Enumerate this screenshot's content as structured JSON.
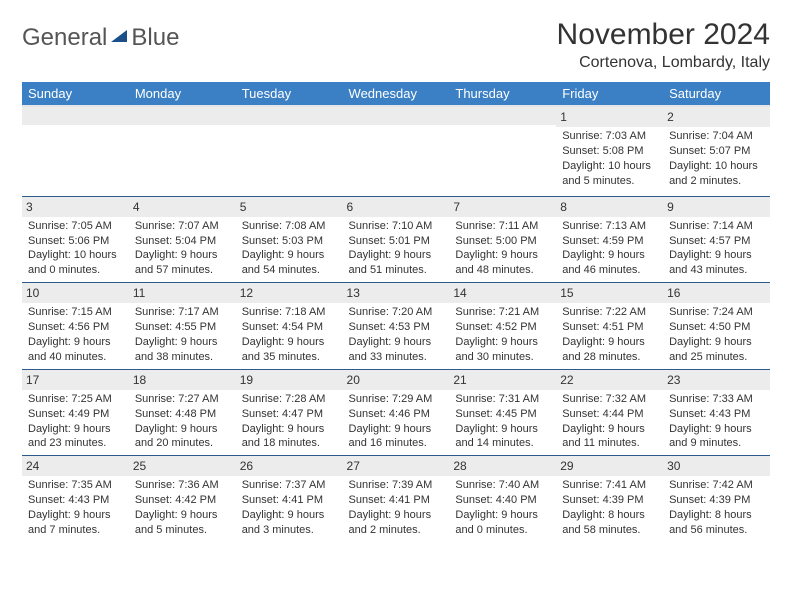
{
  "logo": {
    "text_a": "General",
    "text_b": "Blue"
  },
  "title": "November 2024",
  "location": "Cortenova, Lombardy, Italy",
  "day_headers": [
    "Sunday",
    "Monday",
    "Tuesday",
    "Wednesday",
    "Thursday",
    "Friday",
    "Saturday"
  ],
  "colors": {
    "header_bg": "#3b7fc4",
    "header_fg": "#ffffff",
    "daynum_bg": "#ececec",
    "row_border": "#2c5a8c",
    "text": "#333333"
  },
  "weeks": [
    [
      {
        "n": "",
        "sr": "",
        "ss": "",
        "dl": ""
      },
      {
        "n": "",
        "sr": "",
        "ss": "",
        "dl": ""
      },
      {
        "n": "",
        "sr": "",
        "ss": "",
        "dl": ""
      },
      {
        "n": "",
        "sr": "",
        "ss": "",
        "dl": ""
      },
      {
        "n": "",
        "sr": "",
        "ss": "",
        "dl": ""
      },
      {
        "n": "1",
        "sr": "Sunrise: 7:03 AM",
        "ss": "Sunset: 5:08 PM",
        "dl": "Daylight: 10 hours and 5 minutes."
      },
      {
        "n": "2",
        "sr": "Sunrise: 7:04 AM",
        "ss": "Sunset: 5:07 PM",
        "dl": "Daylight: 10 hours and 2 minutes."
      }
    ],
    [
      {
        "n": "3",
        "sr": "Sunrise: 7:05 AM",
        "ss": "Sunset: 5:06 PM",
        "dl": "Daylight: 10 hours and 0 minutes."
      },
      {
        "n": "4",
        "sr": "Sunrise: 7:07 AM",
        "ss": "Sunset: 5:04 PM",
        "dl": "Daylight: 9 hours and 57 minutes."
      },
      {
        "n": "5",
        "sr": "Sunrise: 7:08 AM",
        "ss": "Sunset: 5:03 PM",
        "dl": "Daylight: 9 hours and 54 minutes."
      },
      {
        "n": "6",
        "sr": "Sunrise: 7:10 AM",
        "ss": "Sunset: 5:01 PM",
        "dl": "Daylight: 9 hours and 51 minutes."
      },
      {
        "n": "7",
        "sr": "Sunrise: 7:11 AM",
        "ss": "Sunset: 5:00 PM",
        "dl": "Daylight: 9 hours and 48 minutes."
      },
      {
        "n": "8",
        "sr": "Sunrise: 7:13 AM",
        "ss": "Sunset: 4:59 PM",
        "dl": "Daylight: 9 hours and 46 minutes."
      },
      {
        "n": "9",
        "sr": "Sunrise: 7:14 AM",
        "ss": "Sunset: 4:57 PM",
        "dl": "Daylight: 9 hours and 43 minutes."
      }
    ],
    [
      {
        "n": "10",
        "sr": "Sunrise: 7:15 AM",
        "ss": "Sunset: 4:56 PM",
        "dl": "Daylight: 9 hours and 40 minutes."
      },
      {
        "n": "11",
        "sr": "Sunrise: 7:17 AM",
        "ss": "Sunset: 4:55 PM",
        "dl": "Daylight: 9 hours and 38 minutes."
      },
      {
        "n": "12",
        "sr": "Sunrise: 7:18 AM",
        "ss": "Sunset: 4:54 PM",
        "dl": "Daylight: 9 hours and 35 minutes."
      },
      {
        "n": "13",
        "sr": "Sunrise: 7:20 AM",
        "ss": "Sunset: 4:53 PM",
        "dl": "Daylight: 9 hours and 33 minutes."
      },
      {
        "n": "14",
        "sr": "Sunrise: 7:21 AM",
        "ss": "Sunset: 4:52 PM",
        "dl": "Daylight: 9 hours and 30 minutes."
      },
      {
        "n": "15",
        "sr": "Sunrise: 7:22 AM",
        "ss": "Sunset: 4:51 PM",
        "dl": "Daylight: 9 hours and 28 minutes."
      },
      {
        "n": "16",
        "sr": "Sunrise: 7:24 AM",
        "ss": "Sunset: 4:50 PM",
        "dl": "Daylight: 9 hours and 25 minutes."
      }
    ],
    [
      {
        "n": "17",
        "sr": "Sunrise: 7:25 AM",
        "ss": "Sunset: 4:49 PM",
        "dl": "Daylight: 9 hours and 23 minutes."
      },
      {
        "n": "18",
        "sr": "Sunrise: 7:27 AM",
        "ss": "Sunset: 4:48 PM",
        "dl": "Daylight: 9 hours and 20 minutes."
      },
      {
        "n": "19",
        "sr": "Sunrise: 7:28 AM",
        "ss": "Sunset: 4:47 PM",
        "dl": "Daylight: 9 hours and 18 minutes."
      },
      {
        "n": "20",
        "sr": "Sunrise: 7:29 AM",
        "ss": "Sunset: 4:46 PM",
        "dl": "Daylight: 9 hours and 16 minutes."
      },
      {
        "n": "21",
        "sr": "Sunrise: 7:31 AM",
        "ss": "Sunset: 4:45 PM",
        "dl": "Daylight: 9 hours and 14 minutes."
      },
      {
        "n": "22",
        "sr": "Sunrise: 7:32 AM",
        "ss": "Sunset: 4:44 PM",
        "dl": "Daylight: 9 hours and 11 minutes."
      },
      {
        "n": "23",
        "sr": "Sunrise: 7:33 AM",
        "ss": "Sunset: 4:43 PM",
        "dl": "Daylight: 9 hours and 9 minutes."
      }
    ],
    [
      {
        "n": "24",
        "sr": "Sunrise: 7:35 AM",
        "ss": "Sunset: 4:43 PM",
        "dl": "Daylight: 9 hours and 7 minutes."
      },
      {
        "n": "25",
        "sr": "Sunrise: 7:36 AM",
        "ss": "Sunset: 4:42 PM",
        "dl": "Daylight: 9 hours and 5 minutes."
      },
      {
        "n": "26",
        "sr": "Sunrise: 7:37 AM",
        "ss": "Sunset: 4:41 PM",
        "dl": "Daylight: 9 hours and 3 minutes."
      },
      {
        "n": "27",
        "sr": "Sunrise: 7:39 AM",
        "ss": "Sunset: 4:41 PM",
        "dl": "Daylight: 9 hours and 2 minutes."
      },
      {
        "n": "28",
        "sr": "Sunrise: 7:40 AM",
        "ss": "Sunset: 4:40 PM",
        "dl": "Daylight: 9 hours and 0 minutes."
      },
      {
        "n": "29",
        "sr": "Sunrise: 7:41 AM",
        "ss": "Sunset: 4:39 PM",
        "dl": "Daylight: 8 hours and 58 minutes."
      },
      {
        "n": "30",
        "sr": "Sunrise: 7:42 AM",
        "ss": "Sunset: 4:39 PM",
        "dl": "Daylight: 8 hours and 56 minutes."
      }
    ]
  ]
}
